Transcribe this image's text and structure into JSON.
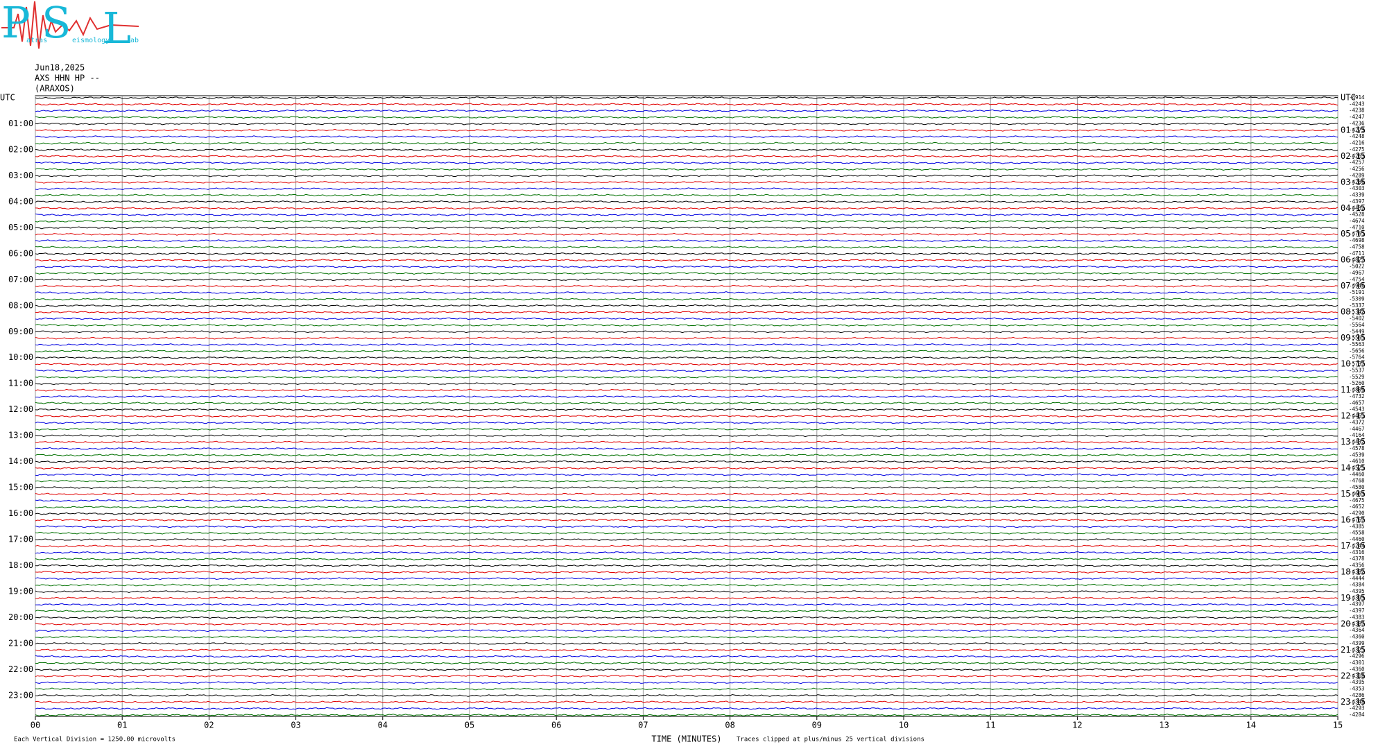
{
  "chart_data": {
    "type": "helicorder",
    "logo": {
      "letters": [
        "P",
        "S",
        "L"
      ],
      "words": [
        "atras",
        "eismology",
        "ab"
      ]
    },
    "date": "Jun18,2025",
    "station": "AXS HHN HP --",
    "site": "(ARAXOS)",
    "left_labels": [
      "UTC",
      "01:00",
      "02:00",
      "03:00",
      "04:00",
      "05:00",
      "06:00",
      "07:00",
      "08:00",
      "09:00",
      "10:00",
      "11:00",
      "12:00",
      "13:00",
      "14:00",
      "15:00",
      "16:00",
      "17:00",
      "18:00",
      "19:00",
      "20:00",
      "21:00",
      "22:00",
      "23:00"
    ],
    "right_labels": [
      "UTC",
      "01:15",
      "02:15",
      "03:15",
      "04:15",
      "05:15",
      "06:15",
      "07:15",
      "08:15",
      "09:15",
      "10:15",
      "11:15",
      "12:15",
      "13:15",
      "14:15",
      "15:15",
      "16:15",
      "17:15",
      "18:15",
      "19:15",
      "20:15",
      "21:15",
      "22:15",
      "23:15"
    ],
    "offsets": [
      -4914,
      -4243,
      -4238,
      -4247,
      -4236,
      -4273,
      -4248,
      -4216,
      -4275,
      -4263,
      -4257,
      -4256,
      -4289,
      -4286,
      -4303,
      -4339,
      -4397,
      -4432,
      -4528,
      -4674,
      -4710,
      -4761,
      -4698,
      -4758,
      -4711,
      -4827,
      -5022,
      -4967,
      -4754,
      -4946,
      -5191,
      -5309,
      -5337,
      -5342,
      -5402,
      -5564,
      -5449,
      -5565,
      -5563,
      -5656,
      -5764,
      -5737,
      -5537,
      -5529,
      -5260,
      -4809,
      -4732,
      -4657,
      -4543,
      -4461,
      -4372,
      -4467,
      -4164,
      -4432,
      -4578,
      -4539,
      -4610,
      -4525,
      -4460,
      -4768,
      -4580,
      -4663,
      -4675,
      -4652,
      -4290,
      -4767,
      -4385,
      -4558,
      -4460,
      -4244,
      -4316,
      -4378,
      -4356,
      -4382,
      -4444,
      -4384,
      -4395,
      -4393,
      -4397,
      -4397,
      -4383,
      -4387,
      -4364,
      -4360,
      -4399,
      -4325,
      -4296,
      -4301,
      -4360,
      -4318,
      -4395,
      -4353,
      -4286,
      -4348,
      -4293,
      -4284
    ],
    "trace_colors": [
      "#000000",
      "#e00000",
      "#0000e0",
      "#007000"
    ],
    "xlim": [
      0,
      15
    ],
    "xticks": [
      {
        "value": 0,
        "label": "00"
      },
      {
        "value": 1,
        "label": "01"
      },
      {
        "value": 2,
        "label": "02"
      },
      {
        "value": 3,
        "label": "03"
      },
      {
        "value": 4,
        "label": "04"
      },
      {
        "value": 5,
        "label": "05"
      },
      {
        "value": 6,
        "label": "06"
      },
      {
        "value": 7,
        "label": "07"
      },
      {
        "value": 8,
        "label": "08"
      },
      {
        "value": 9,
        "label": "09"
      },
      {
        "value": 10,
        "label": "10"
      },
      {
        "value": 11,
        "label": "11"
      },
      {
        "value": 12,
        "label": "12"
      },
      {
        "value": 13,
        "label": "13"
      },
      {
        "value": 14,
        "label": "14"
      },
      {
        "value": 15,
        "label": "15"
      }
    ],
    "xlabel": "TIME (MINUTES)",
    "scale_note": "Each Vertical Division = 1250.00 microvolts",
    "clip_note": "Traces clipped at plus/minus 25 vertical divisions",
    "grid": true
  }
}
